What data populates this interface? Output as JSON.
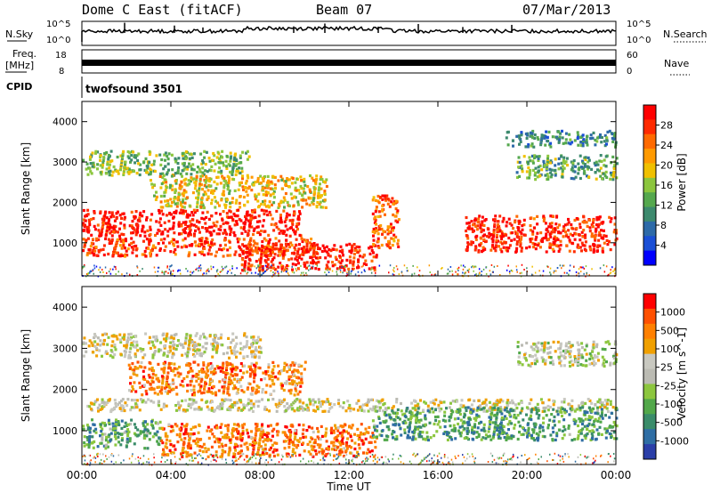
{
  "header": {
    "station": "Dome C East (fitACF)",
    "beam": "Beam 07",
    "date": "07/Mar/2013"
  },
  "status_panels": {
    "nsky": {
      "label": "N.Sky",
      "left_ticks": [
        "10^5",
        "10^0"
      ],
      "right_ticks": [
        "10^5",
        "10^0"
      ],
      "right_label": "N.Search"
    },
    "freq": {
      "label_line1": "Freq.",
      "label_line2": "[MHz]",
      "left_ticks": [
        "18",
        "8"
      ],
      "right_ticks": [
        "60",
        "0"
      ],
      "right_label": "Nave"
    },
    "cpid": {
      "label": "CPID",
      "value": "twofsound 3501"
    }
  },
  "chart_data": [
    {
      "type": "heatmap",
      "name": "power",
      "ylabel": "Slant Range [km]",
      "xlabel": "Time UT",
      "x_ticks": [
        "00:00",
        "04:00",
        "08:00",
        "12:00",
        "16:00",
        "20:00",
        "00:00"
      ],
      "y_ticks": [
        1000,
        2000,
        3000,
        4000
      ],
      "ylim": [
        180,
        4500
      ],
      "colorbar": {
        "label": "Power [dB]",
        "ticks": [
          "28",
          "24",
          "20",
          "16",
          "12",
          "8",
          "4"
        ],
        "colors": [
          "#0000ff",
          "#1a4fd6",
          "#2d6aa8",
          "#3d8a6e",
          "#55a84e",
          "#8cc63e",
          "#f0c000",
          "#ff9a00",
          "#ff6a00",
          "#ff2a00",
          "#ff0000"
        ]
      },
      "bands": [
        {
          "t0": 0.0,
          "t1": 9.8,
          "r0": 1200,
          "r1": 1850,
          "level": 0.95
        },
        {
          "t0": 0.0,
          "t1": 10.5,
          "r0": 700,
          "r1": 1150,
          "level": 0.85
        },
        {
          "t0": 7.0,
          "t1": 13.2,
          "r0": 350,
          "r1": 1000,
          "level": 0.9
        },
        {
          "t0": 17.2,
          "t1": 24.0,
          "r0": 800,
          "r1": 1700,
          "level": 0.9
        },
        {
          "t0": 13.0,
          "t1": 14.2,
          "r0": 900,
          "r1": 2200,
          "level": 0.8
        },
        {
          "t0": 0.0,
          "t1": 7.5,
          "r0": 2700,
          "r1": 3300,
          "level": 0.45
        },
        {
          "t0": 3.0,
          "t1": 11.0,
          "r0": 1900,
          "r1": 2700,
          "level": 0.6
        },
        {
          "t0": 19.5,
          "t1": 24.0,
          "r0": 2600,
          "r1": 3200,
          "level": 0.4
        },
        {
          "t0": 19.0,
          "t1": 24.0,
          "r0": 3400,
          "r1": 3800,
          "level": 0.3
        }
      ]
    },
    {
      "type": "heatmap",
      "name": "velocity",
      "ylabel": "Slant Range [km]",
      "xlabel": "Time UT",
      "x_ticks": [
        "00:00",
        "04:00",
        "08:00",
        "12:00",
        "16:00",
        "20:00",
        "00:00"
      ],
      "y_ticks": [
        1000,
        2000,
        3000,
        4000
      ],
      "ylim": [
        180,
        4500
      ],
      "colorbar": {
        "label": "Velocity [m s^-1]",
        "ticks": [
          "1000",
          "500",
          "100",
          "25",
          "-25",
          "-100",
          "-500",
          "-1000"
        ],
        "colors": [
          "#2b3fa8",
          "#2f6ea4",
          "#3a8c6a",
          "#52a84a",
          "#8cc63e",
          "#bbbbb3",
          "#c8c8c0",
          "#f0a000",
          "#ff8000",
          "#ff5000",
          "#ff0000"
        ]
      },
      "bands": [
        {
          "t0": 0.0,
          "t1": 24.0,
          "r0": 1500,
          "r1": 1800,
          "level": 0.55
        },
        {
          "t0": 0.0,
          "t1": 3.5,
          "r0": 600,
          "r1": 1300,
          "level": 0.3
        },
        {
          "t0": 3.5,
          "t1": 13.2,
          "r0": 400,
          "r1": 1200,
          "level": 0.8
        },
        {
          "t0": 13.0,
          "t1": 24.0,
          "r0": 800,
          "r1": 1600,
          "level": 0.28
        },
        {
          "t0": 2.0,
          "t1": 10.0,
          "r0": 1900,
          "r1": 2700,
          "level": 0.78
        },
        {
          "t0": 0.0,
          "t1": 8.0,
          "r0": 2800,
          "r1": 3400,
          "level": 0.55
        },
        {
          "t0": 19.5,
          "t1": 24.0,
          "r0": 2600,
          "r1": 3200,
          "level": 0.5
        }
      ]
    }
  ]
}
